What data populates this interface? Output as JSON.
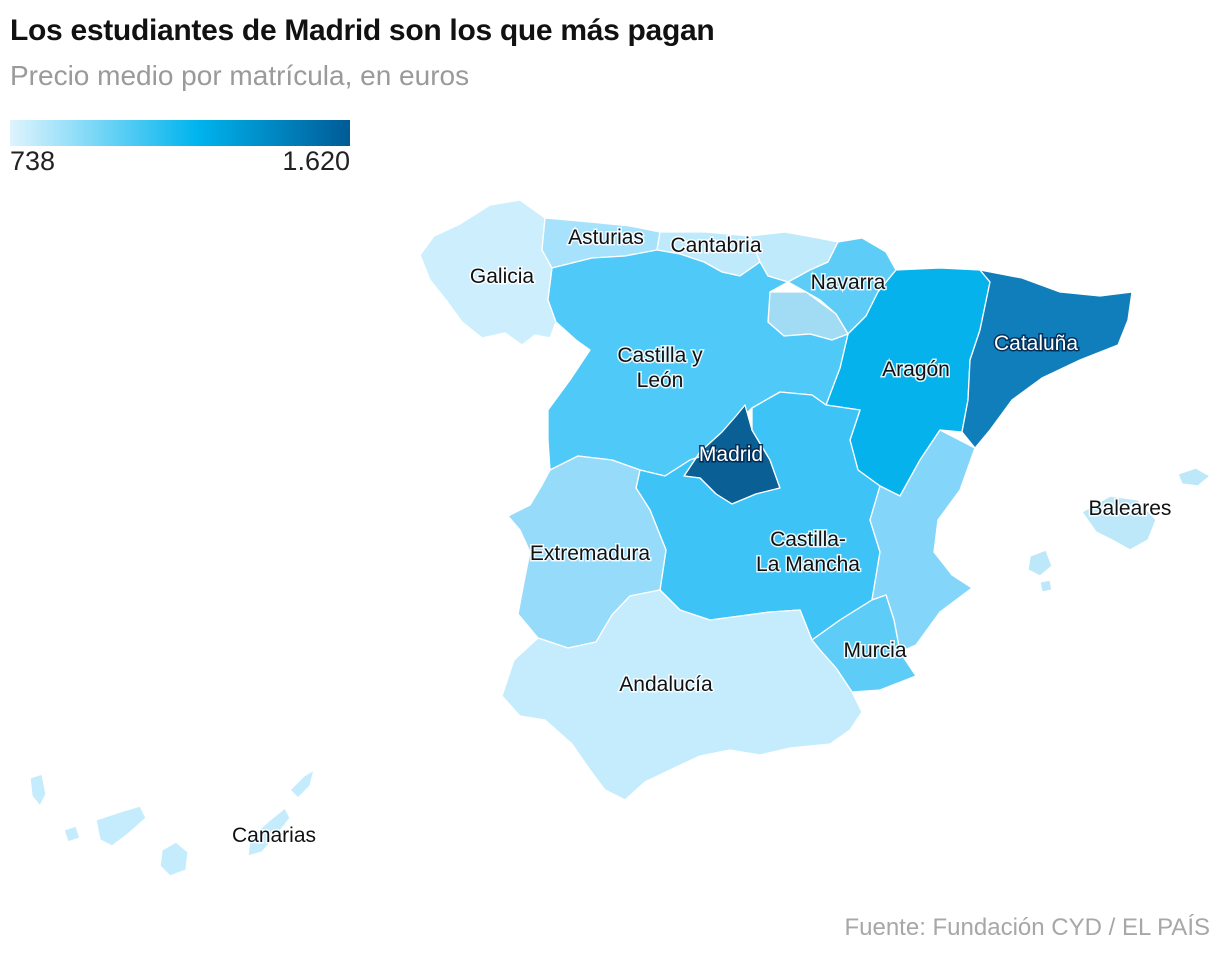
{
  "title": "Los estudiantes de Madrid son los que más pagan",
  "subtitle": "Precio medio por matrícula, en euros",
  "legend": {
    "min_label": "738",
    "max_label": "1.620",
    "colors": [
      "#dff4fd",
      "#00b4ee",
      "#005b96"
    ]
  },
  "source": "Fuente: Fundación CYD / EL PAÍS",
  "regions": {
    "galicia": {
      "label": "Galicia",
      "color": "#cdeffd"
    },
    "asturias": {
      "label": "Asturias",
      "color": "#a6e2fb"
    },
    "cantabria": {
      "label": "Cantabria",
      "color": "#bfeafc"
    },
    "pais_vasco": {
      "label": "",
      "color": "#bfeafc"
    },
    "navarra": {
      "label": "Navarra",
      "color": "#5dcdf8"
    },
    "la_rioja": {
      "label": "",
      "color": "#a1dbf4"
    },
    "aragon": {
      "label": "Aragón",
      "color": "#05b2ec"
    },
    "cataluna": {
      "label": "Cataluña",
      "color": "#0f7ebb"
    },
    "castilla_leon": {
      "label": "Castilla y León",
      "color": "#4fcaf8"
    },
    "madrid": {
      "label": "Madrid",
      "color": "#0a5f95"
    },
    "castilla_lm": {
      "label": "Castilla-La Mancha",
      "color": "#3ec3f6"
    },
    "valencia": {
      "label": "",
      "color": "#83d6f9"
    },
    "extremadura": {
      "label": "Extremadura",
      "color": "#96dcfa"
    },
    "murcia": {
      "label": "Murcia",
      "color": "#5dcdf8"
    },
    "andalucia": {
      "label": "Andalucía",
      "color": "#c4ecfd"
    },
    "baleares": {
      "label": "Baleares",
      "color": "#bde8f9"
    },
    "canarias": {
      "label": "Canarias",
      "color": "#c4ecfd"
    }
  }
}
